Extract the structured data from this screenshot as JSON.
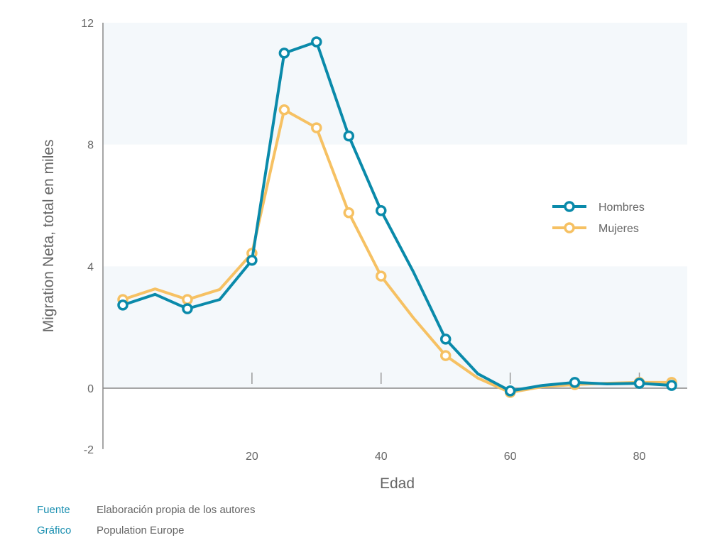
{
  "chart_data": {
    "type": "line",
    "xlabel": "Edad",
    "ylabel": "Migration Neta, total en miles",
    "xlim": [
      0,
      85
    ],
    "ylim": [
      -2,
      12
    ],
    "xticks": [
      20,
      40,
      60,
      80
    ],
    "yticks": [
      -2,
      0,
      4,
      8,
      12
    ],
    "legend_position": "right",
    "x": [
      0,
      5,
      10,
      15,
      20,
      25,
      30,
      35,
      40,
      45,
      50,
      55,
      60,
      65,
      70,
      75,
      80,
      85
    ],
    "marker_x": [
      0,
      10,
      20,
      25,
      30,
      35,
      40,
      50,
      60,
      70,
      80,
      85
    ],
    "series": [
      {
        "name": "Mujeres",
        "color": "#f6c163",
        "values": [
          2.91,
          3.26,
          2.91,
          3.24,
          4.43,
          9.14,
          8.55,
          5.76,
          3.68,
          2.31,
          1.07,
          0.33,
          -0.14,
          0.05,
          0.12,
          0.16,
          0.19,
          0.19
        ]
      },
      {
        "name": "Hombres",
        "color": "#0a8aaa",
        "values": [
          2.73,
          3.08,
          2.61,
          2.91,
          4.2,
          11.0,
          11.37,
          8.28,
          5.83,
          3.82,
          1.61,
          0.47,
          -0.09,
          0.09,
          0.19,
          0.14,
          0.16,
          0.09
        ]
      }
    ]
  },
  "footer": {
    "source_label": "Fuente",
    "source_value": "Elaboración propia de los autores",
    "chart_label": "Gráfico",
    "chart_value": "Population Europe"
  }
}
